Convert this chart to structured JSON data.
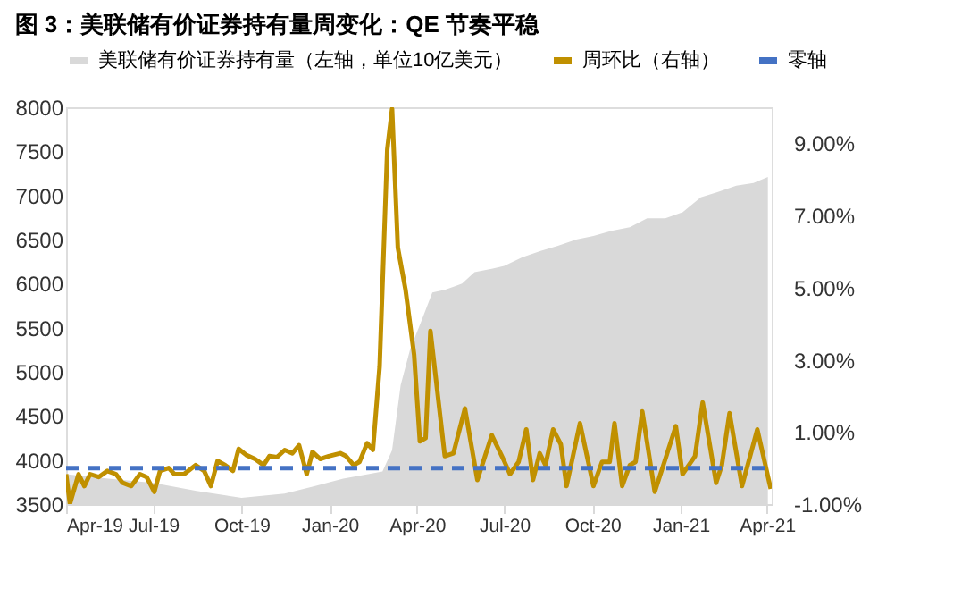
{
  "chart_data": {
    "type": "line",
    "title": "图 3：美联储有价证券持有量周变化：QE 节奏平稳",
    "legend": "top",
    "grid": false,
    "xlim": [
      "2019-04-01",
      "2021-04-06"
    ],
    "xticks": [
      {
        "value": "2019-04-01",
        "label": "Apr-19"
      },
      {
        "value": "2019-07-01",
        "label": "Jul-19"
      },
      {
        "value": "2019-10-01",
        "label": "Oct-19"
      },
      {
        "value": "2020-01-01",
        "label": "Jan-20"
      },
      {
        "value": "2020-04-01",
        "label": "Apr-20"
      },
      {
        "value": "2020-07-01",
        "label": "Jul-20"
      },
      {
        "value": "2020-10-01",
        "label": "Oct-20"
      },
      {
        "value": "2021-01-01",
        "label": "Jan-21"
      },
      {
        "value": "2021-04-01",
        "label": "Apr-21"
      }
    ],
    "ylim": [
      3500,
      8000
    ],
    "yticks": [
      3500,
      4000,
      4500,
      5000,
      5500,
      6000,
      6500,
      7000,
      7500,
      8000
    ],
    "y2lim": [
      -1,
      10
    ],
    "y2ticks": [
      {
        "value": -1,
        "label": "-1.00%"
      },
      {
        "value": 1,
        "label": "1.00%"
      },
      {
        "value": 3,
        "label": "3.00%"
      },
      {
        "value": 5,
        "label": "5.00%"
      },
      {
        "value": 7,
        "label": "7.00%"
      },
      {
        "value": 9,
        "label": "9.00%"
      }
    ],
    "series": [
      {
        "name": "美联储有价证券持有量（左轴，单位10亿美元）",
        "type": "area",
        "color": "#d9d9d9",
        "x": [
          "2019-04-01",
          "2019-05-15",
          "2019-07-01",
          "2019-08-15",
          "2019-10-01",
          "2019-11-15",
          "2019-12-15",
          "2020-01-15",
          "2020-02-10",
          "2020-02-25",
          "2020-03-06",
          "2020-03-15",
          "2020-03-25",
          "2020-04-05",
          "2020-04-17",
          "2020-04-30",
          "2020-05-18",
          "2020-05-31",
          "2020-06-19",
          "2020-07-01",
          "2020-07-20",
          "2020-08-08",
          "2020-08-26",
          "2020-09-14",
          "2020-10-02",
          "2020-10-21",
          "2020-11-09",
          "2020-11-27",
          "2020-12-16",
          "2021-01-03",
          "2021-01-22",
          "2021-02-09",
          "2021-02-28",
          "2021-03-18",
          "2021-04-02"
        ],
        "values": [
          3840,
          3790,
          3740,
          3650,
          3570,
          3620,
          3700,
          3790,
          3840,
          3870,
          4110,
          4850,
          5260,
          5560,
          5900,
          5930,
          6000,
          6130,
          6170,
          6200,
          6300,
          6370,
          6430,
          6500,
          6540,
          6600,
          6640,
          6740,
          6740,
          6810,
          6980,
          7040,
          7110,
          7140,
          7210
        ]
      },
      {
        "name": "周环比（右轴）",
        "axis": "y2",
        "line_style": "solid",
        "color": "#c09000",
        "x": [
          "2019-04-01",
          "2019-04-05",
          "2019-04-14",
          "2019-04-20",
          "2019-04-26",
          "2019-05-05",
          "2019-05-14",
          "2019-05-23",
          "2019-05-30",
          "2019-06-08",
          "2019-06-17",
          "2019-06-24",
          "2019-07-02",
          "2019-07-08",
          "2019-07-17",
          "2019-07-23",
          "2019-08-02",
          "2019-08-14",
          "2019-08-23",
          "2019-08-30",
          "2019-09-06",
          "2019-09-14",
          "2019-09-22",
          "2019-09-28",
          "2019-10-06",
          "2019-10-15",
          "2019-10-24",
          "2019-10-30",
          "2019-11-07",
          "2019-11-15",
          "2019-11-23",
          "2019-11-30",
          "2019-12-08",
          "2019-12-14",
          "2019-12-22",
          "2019-12-31",
          "2020-01-12",
          "2020-01-18",
          "2020-01-26",
          "2020-02-01",
          "2020-02-09",
          "2020-02-15",
          "2020-02-22",
          "2020-03-01",
          "2020-03-06",
          "2020-03-12",
          "2020-03-20",
          "2020-03-29",
          "2020-04-04",
          "2020-04-10",
          "2020-04-15",
          "2020-04-30",
          "2020-05-09",
          "2020-05-21",
          "2020-06-03",
          "2020-06-18",
          "2020-06-30",
          "2020-07-07",
          "2020-07-16",
          "2020-07-24",
          "2020-07-31",
          "2020-08-07",
          "2020-08-13",
          "2020-08-21",
          "2020-08-29",
          "2020-09-04",
          "2020-09-18",
          "2020-10-02",
          "2020-10-11",
          "2020-10-19",
          "2020-10-24",
          "2020-11-01",
          "2020-11-09",
          "2020-11-15",
          "2020-11-22",
          "2020-12-05",
          "2020-12-18",
          "2020-12-27",
          "2021-01-03",
          "2021-01-16",
          "2021-01-24",
          "2021-02-07",
          "2021-02-13",
          "2021-02-21",
          "2021-03-06",
          "2021-03-22",
          "2021-04-05"
        ],
        "values": [
          -0.17,
          -0.99,
          -0.17,
          -0.5,
          -0.17,
          -0.25,
          -0.08,
          -0.17,
          -0.41,
          -0.5,
          -0.17,
          -0.25,
          -0.66,
          -0.08,
          0.0,
          -0.17,
          -0.17,
          0.08,
          -0.08,
          -0.5,
          0.2,
          0.08,
          -0.08,
          0.53,
          0.36,
          0.25,
          0.08,
          0.33,
          0.3,
          0.5,
          0.41,
          0.63,
          -0.17,
          0.45,
          0.25,
          0.33,
          0.41,
          0.33,
          0.08,
          0.17,
          0.69,
          0.5,
          2.81,
          8.83,
          9.95,
          6.11,
          4.95,
          3.14,
          0.74,
          0.83,
          3.8,
          0.33,
          0.41,
          1.65,
          -0.33,
          0.91,
          0.25,
          -0.17,
          0.17,
          1.07,
          -0.33,
          0.41,
          0.08,
          1.07,
          0.66,
          -0.5,
          1.24,
          -0.5,
          0.17,
          0.17,
          1.24,
          -0.5,
          0.08,
          0.17,
          1.57,
          -0.66,
          0.41,
          1.16,
          -0.17,
          0.33,
          1.82,
          -0.41,
          0.08,
          1.52,
          -0.5,
          1.07,
          -0.58
        ]
      },
      {
        "name": "零轴",
        "axis": "y2",
        "line_style": "dashed",
        "color": "#4472c4",
        "x": [
          "2019-04-01",
          "2021-04-05"
        ],
        "values": [
          0,
          0
        ]
      }
    ]
  }
}
